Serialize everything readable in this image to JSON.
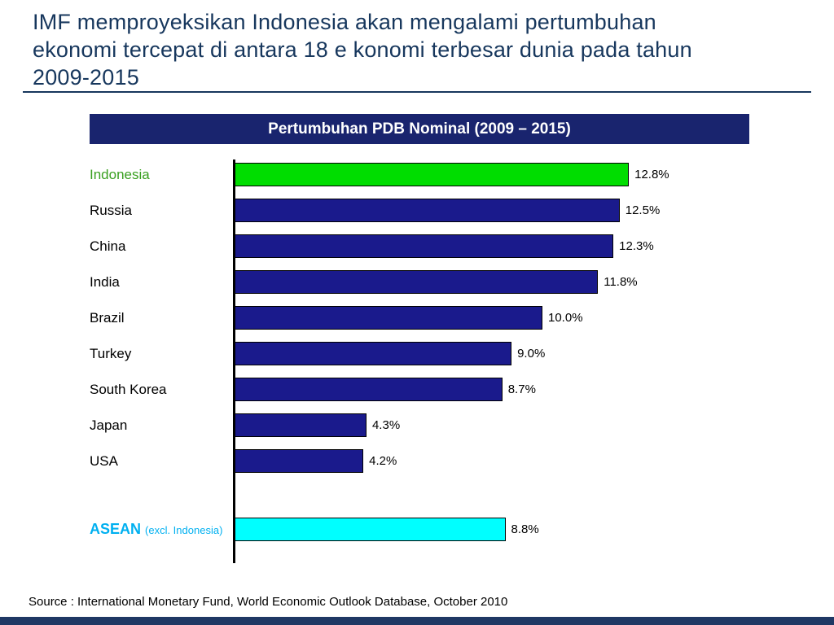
{
  "slide": {
    "title_lines": [
      "IMF memproyeksikan Indonesia akan mengalami pertumbuhan",
      "ekonomi tercepat di antara 18 e konomi terbesar dunia pada tahun",
      "2009-2015"
    ],
    "source": "Source : International Monetary Fund, World Economic Outlook Database, October 2010"
  },
  "chart_data": {
    "type": "bar",
    "orientation": "horizontal",
    "title": "Pertumbuhan PDB Nominal (2009 – 2015)",
    "xlabel": "",
    "ylabel": "",
    "xlim": [
      0,
      13.5
    ],
    "grid": false,
    "legend": false,
    "categories": [
      "Indonesia",
      "Russia",
      "China",
      "India",
      "Brazil",
      "Turkey",
      "South Korea",
      "Japan",
      "USA",
      "ASEAN (excl. Indonesia)"
    ],
    "values": [
      12.8,
      12.5,
      12.3,
      11.8,
      10.0,
      9.0,
      8.7,
      4.3,
      4.2,
      8.8
    ],
    "rows": [
      {
        "label": "Indonesia",
        "value": 12.8,
        "display": "12.8%",
        "bar_color": "#00dd00",
        "label_color": "#3aa021",
        "gap_before": false
      },
      {
        "label": "Russia",
        "value": 12.5,
        "display": "12.5%",
        "bar_color": "#1a1a8c",
        "label_color": "#000000",
        "gap_before": false
      },
      {
        "label": "China",
        "value": 12.3,
        "display": "12.3%",
        "bar_color": "#1a1a8c",
        "label_color": "#000000",
        "gap_before": false
      },
      {
        "label": "India",
        "value": 11.8,
        "display": "11.8%",
        "bar_color": "#1a1a8c",
        "label_color": "#000000",
        "gap_before": false
      },
      {
        "label": "Brazil",
        "value": 10.0,
        "display": "10.0%",
        "bar_color": "#1a1a8c",
        "label_color": "#000000",
        "gap_before": false
      },
      {
        "label": "Turkey",
        "value": 9.0,
        "display": "9.0%",
        "bar_color": "#1a1a8c",
        "label_color": "#000000",
        "gap_before": false
      },
      {
        "label": "South Korea",
        "value": 8.7,
        "display": "8.7%",
        "bar_color": "#1a1a8c",
        "label_color": "#000000",
        "gap_before": false
      },
      {
        "label": "Japan",
        "value": 4.3,
        "display": "4.3%",
        "bar_color": "#1a1a8c",
        "label_color": "#000000",
        "gap_before": false
      },
      {
        "label": "USA",
        "value": 4.2,
        "display": "4.2%",
        "bar_color": "#1a1a8c",
        "label_color": "#000000",
        "gap_before": false
      },
      {
        "label": "ASEAN (excl. Indonesia)",
        "value": 8.8,
        "display": "8.8%",
        "bar_color": "#00ffff",
        "label_color": "#00b0f0",
        "gap_before": true
      }
    ]
  },
  "colors": {
    "title_text": "#17375d",
    "chart_header_bg": "#19246e",
    "navy_bar": "#1a1a8c",
    "green_bar": "#00dd00",
    "cyan_bar": "#00ffff",
    "footer_strip": "#1f3864"
  }
}
